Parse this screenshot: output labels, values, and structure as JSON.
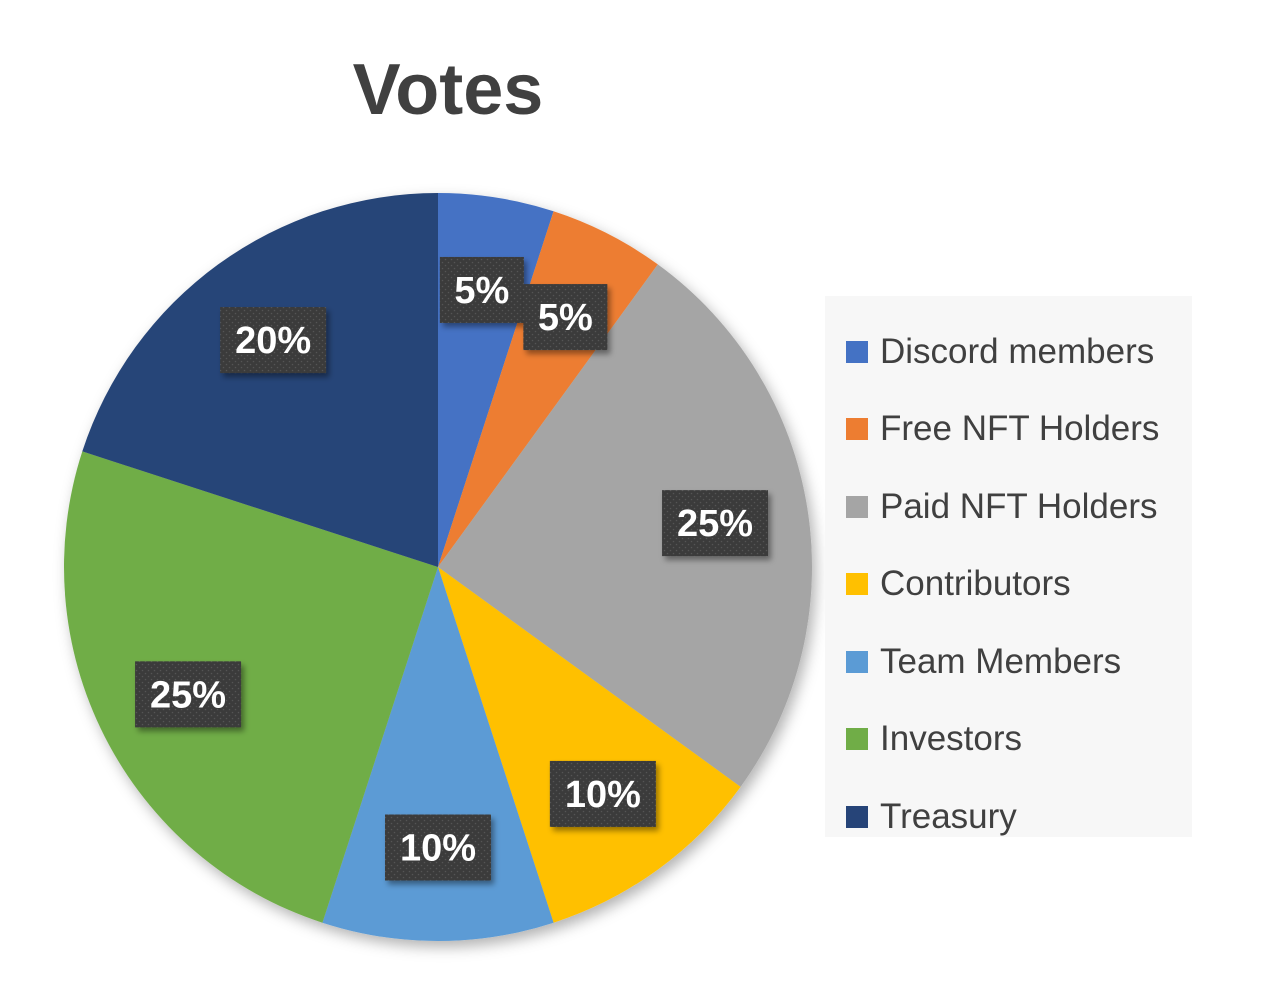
{
  "chart_data": {
    "type": "pie",
    "title": "Votes",
    "categories": [
      "Discord members",
      "Free NFT Holders",
      "Paid NFT Holders",
      "Contributors",
      "Team Members",
      "Investors",
      "Treasury"
    ],
    "values": [
      5,
      5,
      25,
      10,
      10,
      25,
      20
    ],
    "labels": [
      "5%",
      "5%",
      "25%",
      "10%",
      "10%",
      "25%",
      "20%"
    ],
    "colors": [
      "#4472c4",
      "#ed7d31",
      "#a5a5a5",
      "#ffc000",
      "#5b9bd5",
      "#70ad47",
      "#264478"
    ],
    "legend_position": "right",
    "label_style": "dark-box"
  }
}
